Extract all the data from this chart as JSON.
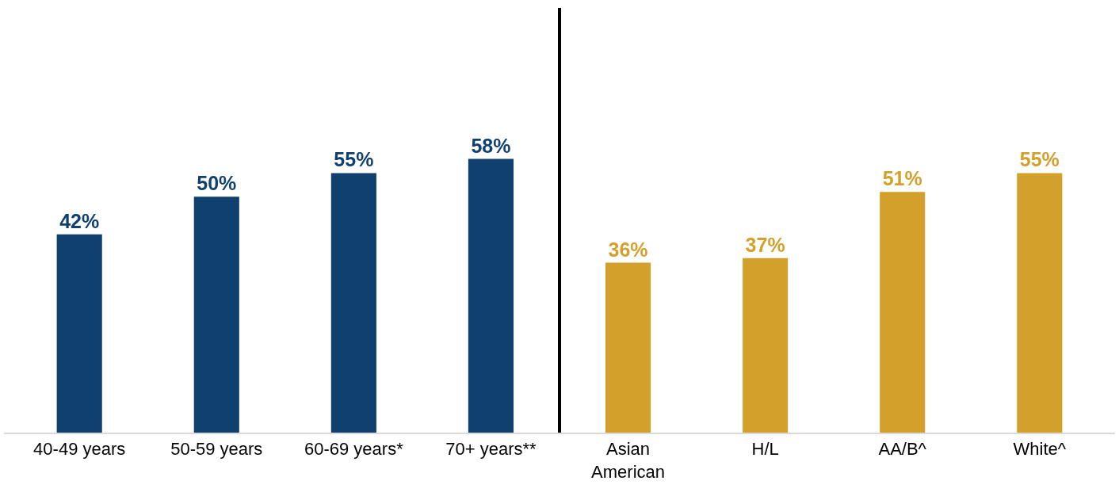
{
  "chart_data": {
    "type": "bar",
    "categories": [
      "40-49 years",
      "50-59 years",
      "60-69 years*",
      "70+ years**",
      "Asian\nAmerican",
      "H/L",
      "AA/B^",
      "White^"
    ],
    "values": [
      42,
      50,
      55,
      58,
      36,
      37,
      51,
      55
    ],
    "value_labels": [
      "42%",
      "50%",
      "55%",
      "58%",
      "36%",
      "37%",
      "51%",
      "55%"
    ],
    "colors": [
      "#10406e",
      "#10406e",
      "#10406e",
      "#10406e",
      "#d4a02c",
      "#d4a02c",
      "#d4a02c",
      "#d4a02c"
    ],
    "ylim": [
      0,
      90
    ],
    "tick_labels": "x"
  }
}
